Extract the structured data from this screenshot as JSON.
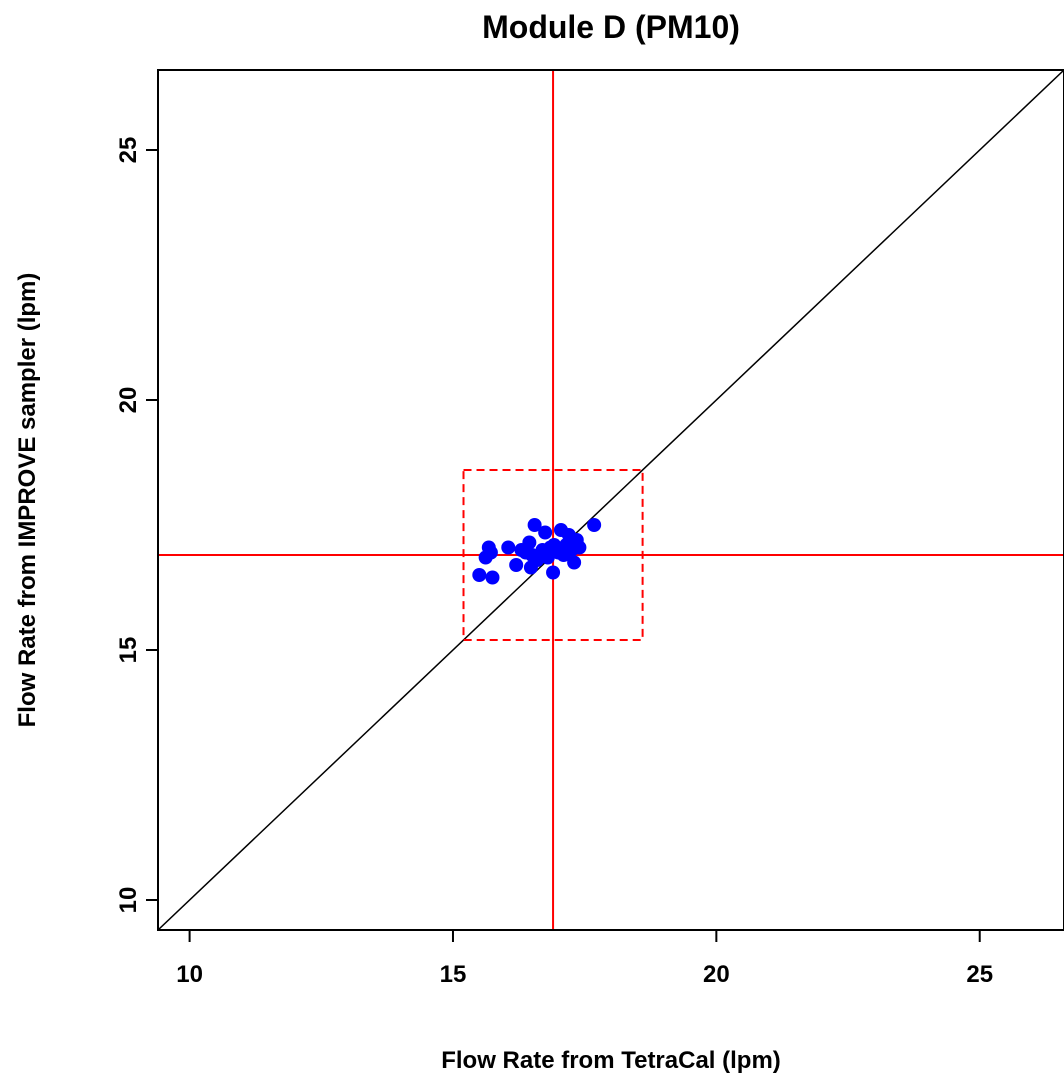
{
  "chart_data": {
    "type": "scatter",
    "title": "Module D (PM10)",
    "xlabel": "Flow Rate from TetraCal (lpm)",
    "ylabel": "Flow Rate from IMPROVE sampler (lpm)",
    "xlim": [
      9.4,
      26.6
    ],
    "ylim": [
      9.4,
      26.6
    ],
    "x_ticks": [
      10,
      15,
      20,
      25
    ],
    "y_ticks": [
      10,
      15,
      20,
      25
    ],
    "grid": false,
    "legend": "none",
    "colors": {
      "points": "#0000ff",
      "reference_lines": "#ff0000",
      "identity_line": "#000000",
      "frame": "#000000"
    },
    "series": [
      {
        "x": [
          15.5,
          15.62,
          15.68,
          15.75,
          15.72,
          16.05,
          16.2,
          16.3,
          16.38,
          16.45,
          16.5,
          16.55,
          16.48,
          16.6,
          16.7,
          16.75,
          16.8,
          16.85,
          16.9,
          16.92,
          17.0,
          17.05,
          17.1,
          17.15,
          17.2,
          17.25,
          17.3,
          17.35,
          17.4,
          17.68
        ],
        "y": [
          16.5,
          16.85,
          17.05,
          16.45,
          16.95,
          17.05,
          16.7,
          17.0,
          16.95,
          17.15,
          16.9,
          17.5,
          16.65,
          16.8,
          17.0,
          17.35,
          16.85,
          17.05,
          16.55,
          17.1,
          16.95,
          17.4,
          16.9,
          17.1,
          17.3,
          17.0,
          16.75,
          17.2,
          17.05,
          17.5
        ]
      }
    ],
    "reference_lines": {
      "vertical_x": 16.9,
      "horizontal_y": 16.9,
      "identity": true,
      "dashed_box": {
        "x": [
          15.2,
          18.6
        ],
        "y": [
          15.2,
          18.6
        ]
      }
    }
  }
}
